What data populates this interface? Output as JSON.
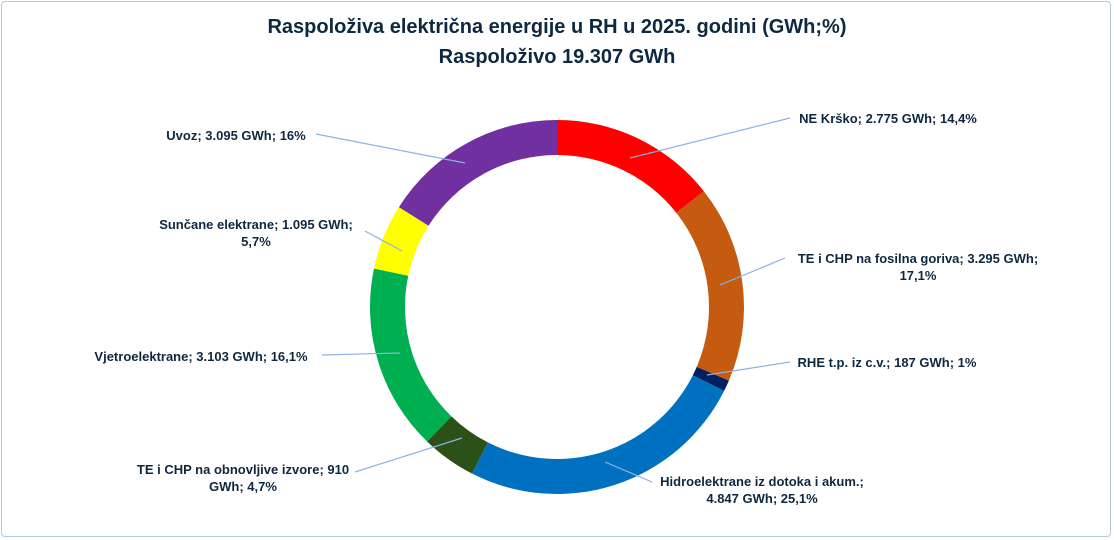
{
  "chart_data": {
    "type": "pie",
    "donut": true,
    "title": "Raspoloživa električna energije u RH u 2025. godini (GWh;%)",
    "subtitle": "Raspoloživo 19.307 GWh",
    "unit": "GWh",
    "slices": [
      {
        "name": "NE Krško",
        "value": 2775,
        "percent": 14.4,
        "color": "#FF0000",
        "label": [
          "NE Krško; 2.775 GWh; 14,4%"
        ]
      },
      {
        "name": "TE i CHP na fosilna goriva",
        "value": 3295,
        "percent": 17.1,
        "color": "#C55A11",
        "label": [
          "TE i CHP na fosilna goriva; 3.295 GWh;",
          "17,1%"
        ]
      },
      {
        "name": "RHE t.p. iz c.v.",
        "value": 187,
        "percent": 1,
        "color": "#002060",
        "label": [
          "RHE t.p. iz c.v.; 187 GWh; 1%"
        ]
      },
      {
        "name": "Hidroelektrane iz dotoka i akum.",
        "value": 4847,
        "percent": 25.1,
        "color": "#0070C0",
        "label": [
          "Hidroelektrane iz dotoka i akum.;",
          "4.847 GWh; 25,1%"
        ]
      },
      {
        "name": "TE i CHP na obnovljive izvore",
        "value": 910,
        "percent": 4.7,
        "color": "#2B5118",
        "label": [
          "TE i CHP na obnovljive izvore; 910",
          "GWh; 4,7%"
        ]
      },
      {
        "name": "Vjetroelektrane",
        "value": 3103,
        "percent": 16.1,
        "color": "#00B050",
        "label": [
          "Vjetroelektrane; 3.103 GWh; 16,1%"
        ]
      },
      {
        "name": "Sunčane elektrane",
        "value": 1095,
        "percent": 5.7,
        "color": "#FFFF00",
        "label": [
          "Sunčane elektrane; 1.095 GWh;",
          "5,7%"
        ]
      },
      {
        "name": "Uvoz",
        "value": 3095,
        "percent": 16,
        "color": "#7030A0",
        "label": [
          "Uvoz; 3.095 GWh; 16%"
        ]
      }
    ]
  }
}
